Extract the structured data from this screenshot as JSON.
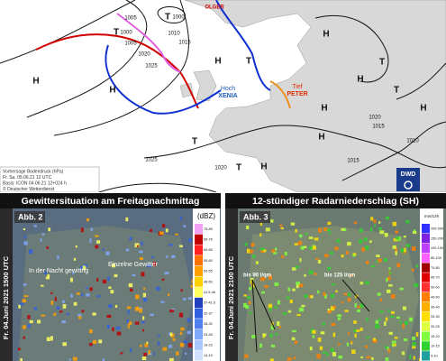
{
  "top_map": {
    "labels": [
      "OLGER",
      "T",
      "1000",
      "1005",
      "T",
      "1000",
      "1005",
      "1010",
      "1015",
      "1020",
      "1025",
      "H",
      "H",
      "H",
      "H",
      "H",
      "H",
      "T",
      "T",
      "T",
      "T",
      "H",
      "H",
      "1020",
      "1015",
      "1010",
      "1025",
      "1015",
      "1020",
      "H",
      "T"
    ],
    "named_systems": [
      {
        "kind": "Hoch",
        "name": "XENIA"
      },
      {
        "kind": "Tief",
        "name": "PETER"
      }
    ],
    "info": [
      "Vorhersage Bodendruck (hPa)",
      "Fr. Sa. 05.06.21 12 UTC",
      "Basis: ICON 04.06.21 12+024 h",
      "© Deutscher Wetterdienst"
    ],
    "logo": "DWD"
  },
  "panels": [
    {
      "title": "Gewittersituation am Freitagnachmittag",
      "figure": "Abb. 2",
      "time": "Fr. 04.Juni 2021 1500 UTC",
      "annotations": [
        "In der Nacht gewittrig",
        "Einzelne Gewitter"
      ],
      "legend_title": "(dBZ)",
      "legend": [
        {
          "label": "75-85",
          "color": "#f0a0f0"
        },
        {
          "label": "65-75",
          "color": "#c00000"
        },
        {
          "label": "60-65",
          "color": "#ff2020"
        },
        {
          "label": "55-60",
          "color": "#ff7000"
        },
        {
          "label": "50-55",
          "color": "#ffa000"
        },
        {
          "label": "46-50",
          "color": "#ffd000"
        },
        {
          "label": "41.5-46",
          "color": "#ffff60"
        },
        {
          "label": "37-41.5",
          "color": "#2040c0"
        },
        {
          "label": "32-37",
          "color": "#3060e0"
        },
        {
          "label": "28-32",
          "color": "#5080f0"
        },
        {
          "label": "23-28",
          "color": "#80a8f8"
        },
        {
          "label": "19-23",
          "color": "#a8c8ff"
        },
        {
          "label": "14-19",
          "color": "#d0e0ff"
        }
      ]
    },
    {
      "title": "12-stündiger Radarniederschlag (SH)",
      "figure": "Abb. 3",
      "time": "Fr. 04.Juni 2021 2100 UTC",
      "annotations": [
        "bis 90 l/qm",
        "bis 125 l/qm"
      ],
      "legend_title": "mm/12h",
      "legend": [
        {
          "label": "200-999",
          "color": "#3030ff"
        },
        {
          "label": "150-200",
          "color": "#8020e0"
        },
        {
          "label": "100-150",
          "color": "#c040ff"
        },
        {
          "label": "80-100",
          "color": "#ff60ff"
        },
        {
          "label": "70-80",
          "color": "#a00000"
        },
        {
          "label": "60-70",
          "color": "#e00000"
        },
        {
          "label": "50-60",
          "color": "#ff3030"
        },
        {
          "label": "40-50",
          "color": "#ff8000"
        },
        {
          "label": "30-40",
          "color": "#ffb000"
        },
        {
          "label": "25-30",
          "color": "#ffe000"
        },
        {
          "label": "20-25",
          "color": "#e0ff40"
        },
        {
          "label": "15-20",
          "color": "#80ff40"
        },
        {
          "label": "10-15",
          "color": "#30d030"
        },
        {
          "label": "5-10",
          "color": "#20a0a0"
        }
      ]
    }
  ]
}
